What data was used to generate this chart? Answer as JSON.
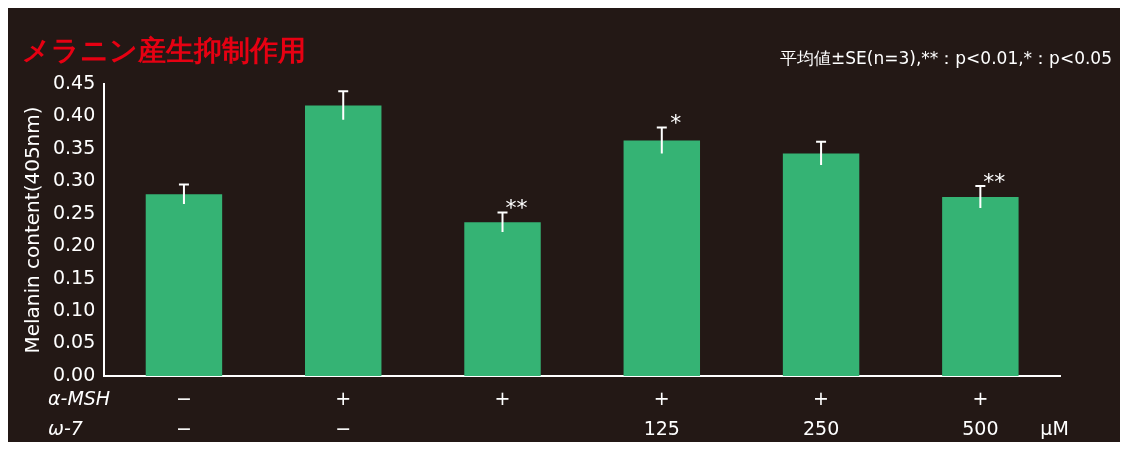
{
  "chart_data": {
    "type": "bar",
    "title": "メラニン産生抑制作用",
    "subtitle": "平均値±SE(n=3),**：p<0.01,*：p<0.05",
    "ylabel": "Melanin content(405nm)",
    "categories": [
      "−\n−",
      "+\n−",
      "+\n",
      "+\n125",
      "+\n250",
      "+\n500"
    ],
    "values": [
      0.28,
      0.417,
      0.237,
      0.363,
      0.343,
      0.276
    ],
    "errors": [
      0.015,
      0.022,
      0.015,
      0.02,
      0.018,
      0.017
    ],
    "value_labels": [
      null,
      null,
      "**",
      "*",
      null,
      "**"
    ],
    "color": "#35b374",
    "ylim": [
      0,
      0.45
    ],
    "yticks": [
      {
        "value": 0,
        "label": "0.00"
      },
      {
        "value": 0.05,
        "label": "0.05"
      },
      {
        "value": 0.1,
        "label": "0.10"
      },
      {
        "value": 0.15,
        "label": "0.15"
      },
      {
        "value": 0.2,
        "label": "0.20"
      },
      {
        "value": 0.25,
        "label": "0.25"
      },
      {
        "value": 0.3,
        "label": "0.30"
      },
      {
        "value": 0.35,
        "label": "0.35"
      },
      {
        "value": 0.4,
        "label": "0.40"
      },
      {
        "value": 0.45,
        "label": "0.45"
      }
    ],
    "annotations": [
      "α-MSH",
      "ω-7",
      "μM"
    ],
    "grid": false,
    "legend": false
  }
}
